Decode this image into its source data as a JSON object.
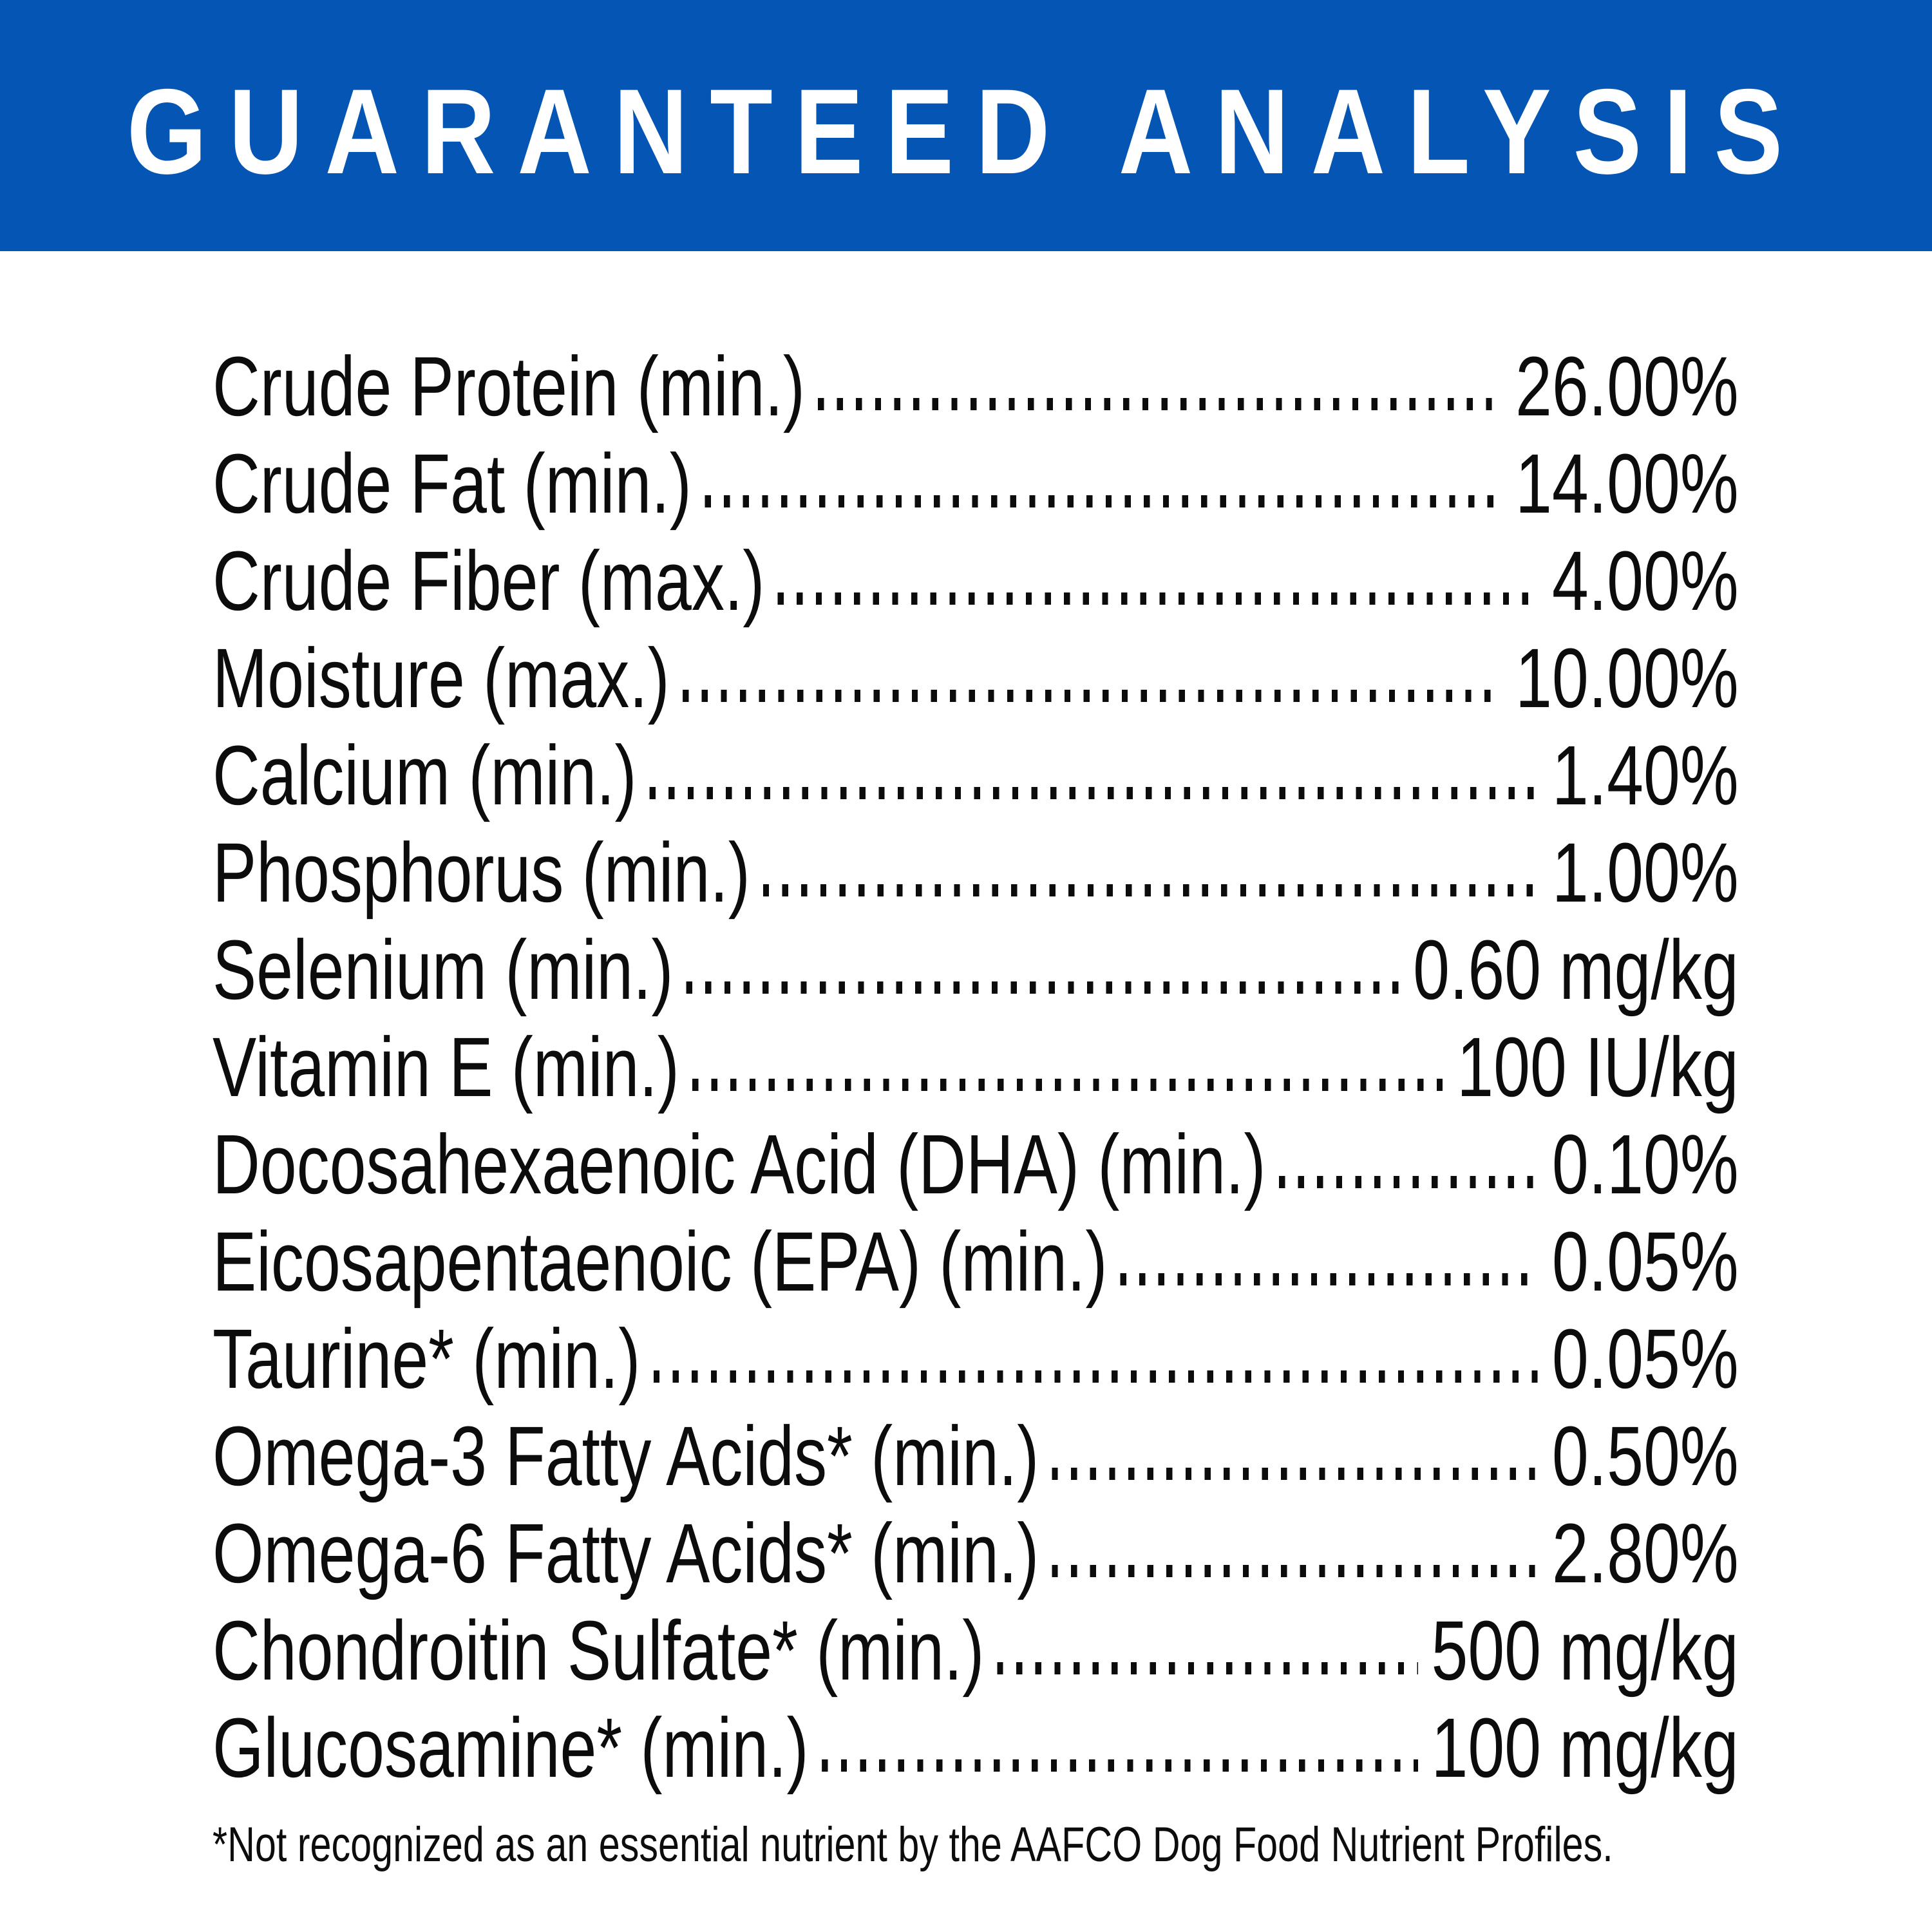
{
  "header": {
    "title": "GUARANTEED ANALYSIS",
    "bg_color": "#0455B4",
    "text_color": "#FFFFFF"
  },
  "table": {
    "rows": [
      {
        "label": "Crude Protein (min.)",
        "value": "26.00%"
      },
      {
        "label": "Crude Fat (min.)",
        "value": "14.00%"
      },
      {
        "label": "Crude Fiber (max.)",
        "value": "4.00%"
      },
      {
        "label": "Moisture (max.)",
        "value": "10.00%"
      },
      {
        "label": "Calcium (min.)",
        "value": "1.40%"
      },
      {
        "label": "Phosphorus (min.)",
        "value": "1.00%"
      },
      {
        "label": "Selenium (min.)",
        "value": "0.60 mg/kg"
      },
      {
        "label": "Vitamin E (min.)",
        "value": "100 IU/kg"
      },
      {
        "label": "Docosahexaenoic Acid (DHA) (min.)",
        "value": "0.10%"
      },
      {
        "label": "Eicosapentaenoic (EPA) (min.)",
        "value": "0.05%"
      },
      {
        "label": "Taurine* (min.)",
        "value": "0.05%"
      },
      {
        "label": "Omega-3 Fatty Acids* (min.)",
        "value": "0.50%"
      },
      {
        "label": "Omega-6 Fatty Acids* (min.)",
        "value": "2.80%"
      },
      {
        "label": "Chondroitin Sulfate* (min.)",
        "value": "500 mg/kg"
      },
      {
        "label": "Glucosamine* (min.)",
        "value": "100 mg/kg"
      }
    ]
  },
  "footnote": "*Not recognized as an essential nutrient by the AAFCO Dog Food Nutrient Profiles."
}
